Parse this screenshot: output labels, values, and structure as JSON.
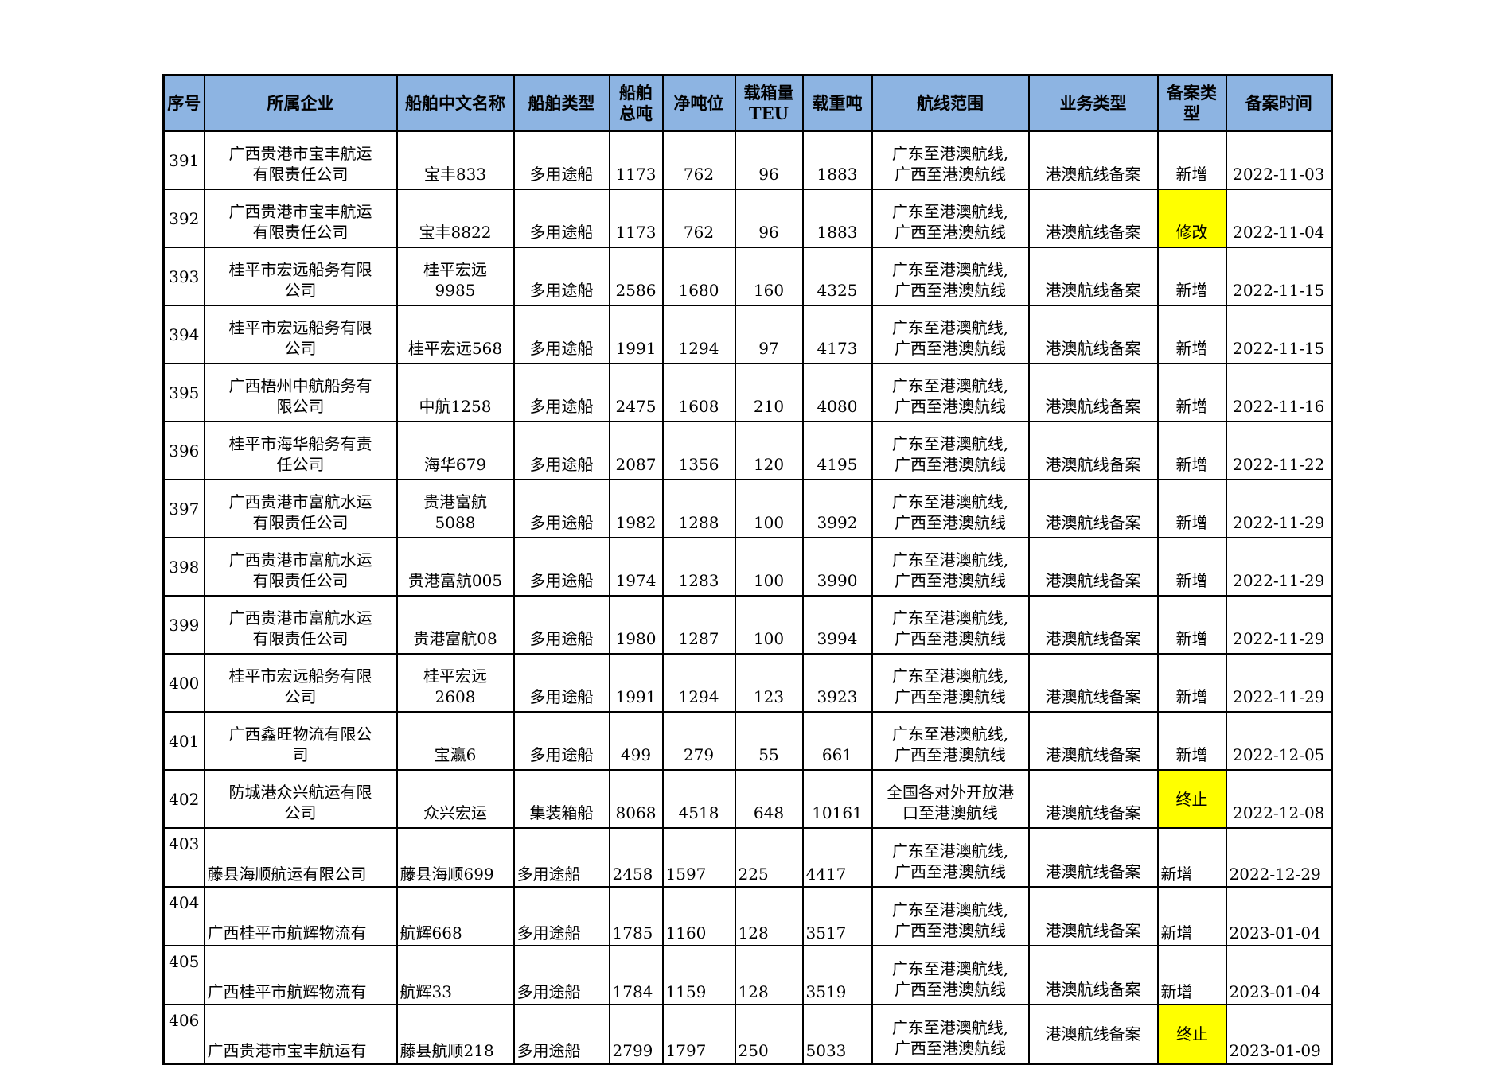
{
  "colors": {
    "header_bg": "#8DB4E2",
    "highlight": "#FFFF00",
    "border": "#000000",
    "text": "#000000",
    "page_bg": "#FFFFFF"
  },
  "table": {
    "columns": [
      {
        "key": "seq",
        "label": "序号"
      },
      {
        "key": "company",
        "label": "所属企业"
      },
      {
        "key": "ship",
        "label": "船舶中文名称"
      },
      {
        "key": "stype",
        "label": "船舶类型"
      },
      {
        "key": "gross",
        "label": "船舶\n总吨"
      },
      {
        "key": "net",
        "label": "净吨位"
      },
      {
        "key": "teu",
        "label": "载箱量\nTEU"
      },
      {
        "key": "dwt",
        "label": "载重吨"
      },
      {
        "key": "route",
        "label": "航线范围"
      },
      {
        "key": "business",
        "label": "业务类型"
      },
      {
        "key": "filing",
        "label": "备案类\n型"
      },
      {
        "key": "date",
        "label": "备案时间"
      }
    ],
    "rows": [
      {
        "seq": "391",
        "company": "广西贵港市宝丰航运\n有限责任公司",
        "ship": "宝丰833",
        "stype": "多用途船",
        "gross": "1173",
        "net": "762",
        "teu": "96",
        "dwt": "1883",
        "route": "广东至港澳航线,\n广西至港澳航线",
        "business": "港澳航线备案",
        "filing": "新增",
        "filing_hl": false,
        "date": "2022-11-03"
      },
      {
        "seq": "392",
        "company": "广西贵港市宝丰航运\n有限责任公司",
        "ship": "宝丰8822",
        "stype": "多用途船",
        "gross": "1173",
        "net": "762",
        "teu": "96",
        "dwt": "1883",
        "route": "广东至港澳航线,\n广西至港澳航线",
        "business": "港澳航线备案",
        "filing": "修改",
        "filing_hl": true,
        "date": "2022-11-04"
      },
      {
        "seq": "393",
        "company": "桂平市宏远船务有限\n公司",
        "ship": "桂平宏远\n9985",
        "stype": "多用途船",
        "gross": "2586",
        "net": "1680",
        "teu": "160",
        "dwt": "4325",
        "route": "广东至港澳航线,\n广西至港澳航线",
        "business": "港澳航线备案",
        "filing": "新增",
        "filing_hl": false,
        "date": "2022-11-15"
      },
      {
        "seq": "394",
        "company": "桂平市宏远船务有限\n公司",
        "ship": "桂平宏远568",
        "stype": "多用途船",
        "gross": "1991",
        "net": "1294",
        "teu": "97",
        "dwt": "4173",
        "route": "广东至港澳航线,\n广西至港澳航线",
        "business": "港澳航线备案",
        "filing": "新增",
        "filing_hl": false,
        "date": "2022-11-15"
      },
      {
        "seq": "395",
        "company": "广西梧州中航船务有\n限公司",
        "ship": "中航1258",
        "stype": "多用途船",
        "gross": "2475",
        "net": "1608",
        "teu": "210",
        "dwt": "4080",
        "route": "广东至港澳航线,\n广西至港澳航线",
        "business": "港澳航线备案",
        "filing": "新增",
        "filing_hl": false,
        "date": "2022-11-16"
      },
      {
        "seq": "396",
        "company": "桂平市海华船务有责\n任公司",
        "ship": "海华679",
        "stype": "多用途船",
        "gross": "2087",
        "net": "1356",
        "teu": "120",
        "dwt": "4195",
        "route": "广东至港澳航线,\n广西至港澳航线",
        "business": "港澳航线备案",
        "filing": "新增",
        "filing_hl": false,
        "date": "2022-11-22"
      },
      {
        "seq": "397",
        "company": "广西贵港市富航水运\n有限责任公司",
        "ship": "贵港富航\n5088",
        "stype": "多用途船",
        "gross": "1982",
        "net": "1288",
        "teu": "100",
        "dwt": "3992",
        "route": "广东至港澳航线,\n广西至港澳航线",
        "business": "港澳航线备案",
        "filing": "新增",
        "filing_hl": false,
        "date": "2022-11-29"
      },
      {
        "seq": "398",
        "company": "广西贵港市富航水运\n有限责任公司",
        "ship": "贵港富航005",
        "stype": "多用途船",
        "gross": "1974",
        "net": "1283",
        "teu": "100",
        "dwt": "3990",
        "route": "广东至港澳航线,\n广西至港澳航线",
        "business": "港澳航线备案",
        "filing": "新增",
        "filing_hl": false,
        "date": "2022-11-29"
      },
      {
        "seq": "399",
        "company": "广西贵港市富航水运\n有限责任公司",
        "ship": "贵港富航08",
        "stype": "多用途船",
        "gross": "1980",
        "net": "1287",
        "teu": "100",
        "dwt": "3994",
        "route": "广东至港澳航线,\n广西至港澳航线",
        "business": "港澳航线备案",
        "filing": "新增",
        "filing_hl": false,
        "date": "2022-11-29"
      },
      {
        "seq": "400",
        "company": "桂平市宏远船务有限\n公司",
        "ship": "桂平宏远\n2608",
        "stype": "多用途船",
        "gross": "1991",
        "net": "1294",
        "teu": "123",
        "dwt": "3923",
        "route": "广东至港澳航线,\n广西至港澳航线",
        "business": "港澳航线备案",
        "filing": "新增",
        "filing_hl": false,
        "date": "2022-11-29"
      },
      {
        "seq": "401",
        "company": "广西鑫旺物流有限公\n司",
        "ship": "宝瀛6",
        "stype": "多用途船",
        "gross": "499",
        "net": "279",
        "teu": "55",
        "dwt": "661",
        "route": "广东至港澳航线,\n广西至港澳航线",
        "business": "港澳航线备案",
        "filing": "新增",
        "filing_hl": false,
        "date": "2022-12-05"
      },
      {
        "seq": "402",
        "company": "防城港众兴航运有限\n公司",
        "ship": "众兴宏运",
        "stype": "集装箱船",
        "gross": "8068",
        "net": "4518",
        "teu": "648",
        "dwt": "10161",
        "route": "全国各对外开放港\n口至港澳航线",
        "business": "港澳航线备案",
        "filing": "终止",
        "filing_hl": true,
        "date": "2022-12-08"
      },
      {
        "seq": "403",
        "company": "藤县海顺航运有限公司",
        "ship": "藤县海顺699",
        "stype": "多用途船",
        "gross": "2458",
        "net": "1597",
        "teu": "225",
        "dwt": "4417",
        "route": "广东至港澳航线,\n广西至港澳航线",
        "business": "港澳航线备案",
        "filing": "新增",
        "filing_hl": false,
        "date": "2022-12-29"
      },
      {
        "seq": "404",
        "company": "广西桂平市航辉物流有",
        "ship": "航辉668",
        "stype": "多用途船",
        "gross": "1785",
        "net": "1160",
        "teu": "128",
        "dwt": "3517",
        "route": "广东至港澳航线,\n广西至港澳航线",
        "business": "港澳航线备案",
        "filing": "新增",
        "filing_hl": false,
        "date": "2023-01-04"
      },
      {
        "seq": "405",
        "company": "广西桂平市航辉物流有",
        "ship": "航辉33",
        "stype": "多用途船",
        "gross": "1784",
        "net": "1159",
        "teu": "128",
        "dwt": "3519",
        "route": "广东至港澳航线,\n广西至港澳航线",
        "business": "港澳航线备案",
        "filing": "新增",
        "filing_hl": false,
        "date": "2023-01-04"
      },
      {
        "seq": "406",
        "company": "广西贵港市宝丰航运有",
        "ship": "藤县航顺218",
        "stype": "多用途船",
        "gross": "2799",
        "net": "1797",
        "teu": "250",
        "dwt": "5033",
        "route": "广东至港澳航线,\n广西至港澳航线",
        "business": "港澳航线备案",
        "filing": "终止",
        "filing_hl": true,
        "date": "2023-01-09"
      }
    ]
  }
}
